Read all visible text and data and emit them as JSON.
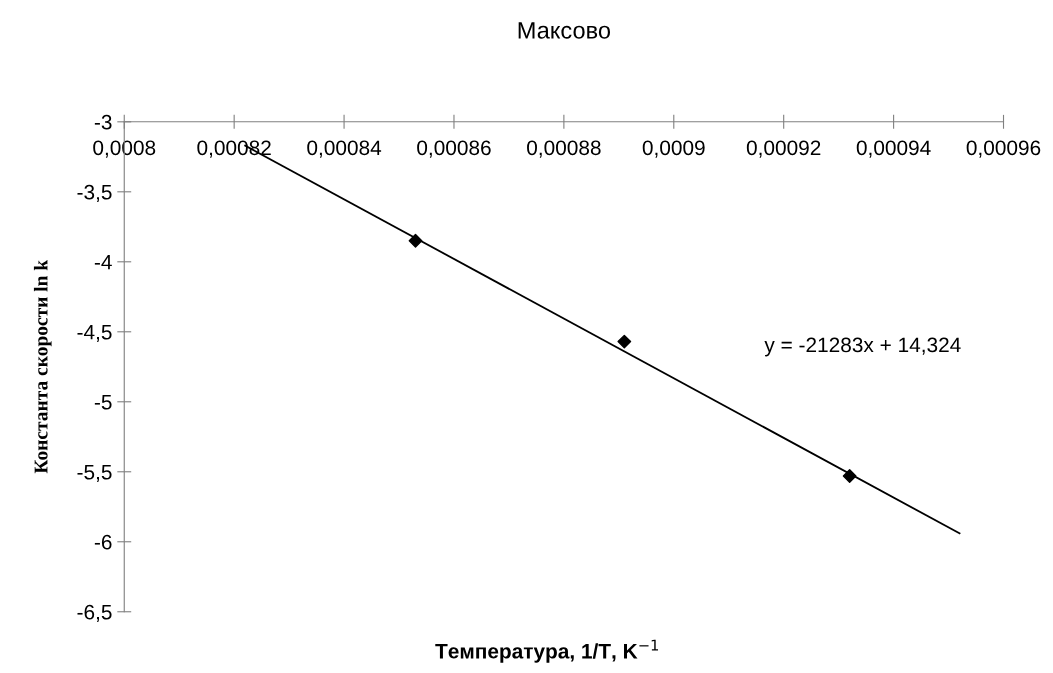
{
  "chart_data": {
    "type": "scatter",
    "title": "Максово",
    "xlabel": "Температура, 1/T, K$^{−1}$",
    "ylabel": "Константа скорости ln k",
    "annotations": [
      "y = -21283x + 14,324"
    ],
    "series": [
      {
        "color": "#000000",
        "marker": "diamond",
        "x": [
          0.000853,
          0.000891,
          0.000932
        ],
        "values": [
          -3.85,
          -4.57,
          -5.53
        ]
      },
      {
        "type": "line",
        "color": "#000000",
        "marker": "none",
        "x": [
          0.000822,
          0.000952
        ],
        "values": [
          -3.17,
          -5.94
        ]
      }
    ],
    "xlim": [
      0.0008,
      0.00096
    ],
    "xticks": [
      {
        "value": 0.0008,
        "label": "0,0008"
      },
      {
        "value": 0.00082,
        "label": "0,00082"
      },
      {
        "value": 0.00084,
        "label": "0,00084"
      },
      {
        "value": 0.00086,
        "label": "0,00086"
      },
      {
        "value": 0.00088,
        "label": "0,00088"
      },
      {
        "value": 0.0009,
        "label": "0,0009"
      },
      {
        "value": 0.00092,
        "label": "0,00092"
      },
      {
        "value": 0.00094,
        "label": "0,00094"
      },
      {
        "value": 0.00096,
        "label": "0,00096"
      }
    ],
    "ylim": [
      -6.5,
      -3
    ],
    "yticks": [
      -3,
      {
        "value": -3.5,
        "label": "-3,5"
      },
      -4,
      {
        "value": -4.5,
        "label": "-4,5"
      },
      -5,
      {
        "value": -5.5,
        "label": "-5,5"
      },
      -6,
      {
        "value": -6.5,
        "label": "-6,5"
      }
    ],
    "grid": false,
    "legend": false
  }
}
